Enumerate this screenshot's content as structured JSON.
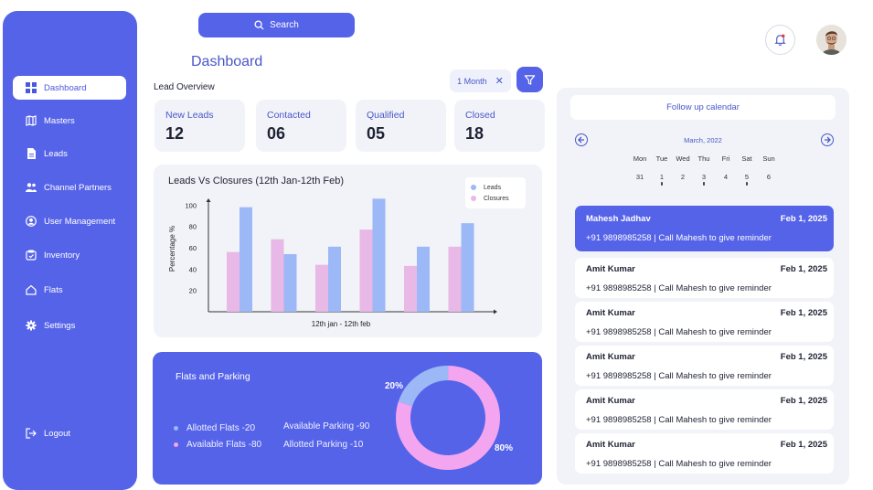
{
  "sidebar": {
    "items": [
      {
        "label": "Dashboard",
        "icon": "dashboard-icon",
        "active": true
      },
      {
        "label": "Masters",
        "icon": "map-icon"
      },
      {
        "label": "Leads",
        "icon": "document-icon"
      },
      {
        "label": "Channel Partners",
        "icon": "people-icon"
      },
      {
        "label": "User Management",
        "icon": "user-circle-icon"
      },
      {
        "label": "Inventory",
        "icon": "inventory-icon"
      },
      {
        "label": "Flats",
        "icon": "home-icon"
      },
      {
        "label": "Settings",
        "icon": "gear-icon"
      }
    ],
    "logout": "Logout"
  },
  "search": {
    "label": "Search"
  },
  "header": {
    "title": "Dashboard",
    "section": "Lead Overview",
    "filter_chip": "1 Month"
  },
  "stats": [
    {
      "label": "New Leads",
      "value": "12"
    },
    {
      "label": "Contacted",
      "value": "06"
    },
    {
      "label": "Qualified",
      "value": "05"
    },
    {
      "label": "Closed",
      "value": "18"
    }
  ],
  "chart_data": {
    "type": "bar",
    "title": "Leads Vs Closures (12th Jan-12th Feb)",
    "xlabel": "12th jan - 12th feb",
    "ylabel": "Percentage %",
    "yticks": [
      20,
      40,
      60,
      80,
      100
    ],
    "ylim": [
      0,
      120
    ],
    "series": [
      {
        "name": "Leads",
        "color": "#9db8f7",
        "values": [
          98,
          54,
          61,
          106,
          61,
          83
        ]
      },
      {
        "name": "Closures",
        "color": "#e8b9e6",
        "values": [
          56,
          68,
          44,
          77,
          43,
          61
        ]
      }
    ],
    "grid": false,
    "legend": "top-right"
  },
  "flats": {
    "title": "Flats and Parking",
    "items": [
      {
        "label": "Allotted Flats -20",
        "color": "#9db8f7"
      },
      {
        "label": "Available Flats -80",
        "color": "#f3a6ef"
      }
    ],
    "parking": [
      "Available Parking -90",
      "Allotted Parking -10"
    ],
    "donut": [
      {
        "label": "20%",
        "value": 20,
        "color": "#9db8f7"
      },
      {
        "label": "80%",
        "value": 80,
        "color": "#f3a6ef"
      }
    ]
  },
  "calendar": {
    "header": "Follow up calendar",
    "month": "March, 2022",
    "weekdays": [
      "Mon",
      "Tue",
      "Wed",
      "Thu",
      "Fri",
      "Sat",
      "Sun"
    ],
    "days": [
      "31",
      "1",
      "2",
      "3",
      "4",
      "5",
      "6"
    ]
  },
  "followups": [
    {
      "name": "Mahesh Jadhav",
      "date": "Feb 1, 2025",
      "detail": "+91 9898985258   |   Call Mahesh to give reminder",
      "active": true
    },
    {
      "name": "Amit Kumar",
      "date": "Feb 1, 2025",
      "detail": "+91 9898985258   |   Call Mahesh to give reminder"
    },
    {
      "name": "Amit Kumar",
      "date": "Feb 1, 2025",
      "detail": "+91 9898985258   |   Call Mahesh to give reminder"
    },
    {
      "name": "Amit Kumar",
      "date": "Feb 1, 2025",
      "detail": "+91 9898985258   |   Call Mahesh to give reminder"
    },
    {
      "name": "Amit Kumar",
      "date": "Feb 1, 2025",
      "detail": "+91 9898985258   |   Call Mahesh to give reminder"
    },
    {
      "name": "Amit Kumar",
      "date": "Feb 1, 2025",
      "detail": "+91 9898985258   |   Call Mahesh to give reminder"
    }
  ]
}
